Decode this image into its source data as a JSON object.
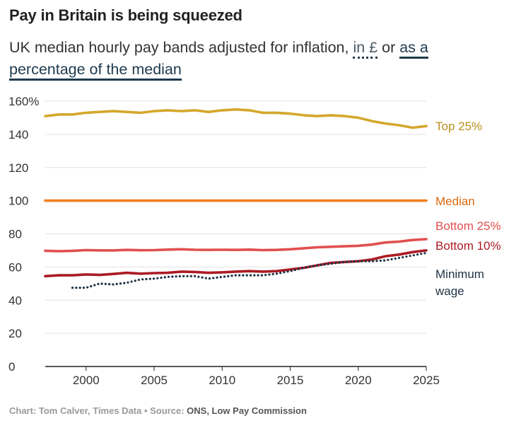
{
  "header": {
    "title": "Pay in Britain is being squeezed",
    "subtitle_main": "UK median hourly pay bands adjusted for inflation,",
    "toggle_pound": "in £",
    "subtitle_or": "or",
    "toggle_percent": "as a percentage of the median"
  },
  "footer": {
    "credit": "Chart: Tom Calver, Times Data • Source: ",
    "source": "ONS, Low Pay Commission"
  },
  "colors": {
    "top25": "#d4a72c",
    "median": "#f07f1e",
    "bottom25": "#e0504f",
    "bottom10": "#ab1c25",
    "minimum_wage": "#1e3244",
    "grid": "#e2e2e2",
    "axis": "#222222"
  },
  "chart_data": {
    "type": "line",
    "title": "Pay in Britain is being squeezed",
    "subtitle": "UK median hourly pay bands adjusted for inflation, in £ or as a percentage of the median",
    "xlabel": "",
    "ylabel": "",
    "xlim": [
      1997,
      2025
    ],
    "ylim": [
      0,
      160
    ],
    "x_ticks": [
      2000,
      2005,
      2010,
      2015,
      2020,
      2025
    ],
    "y_ticks": [
      0,
      20,
      40,
      60,
      80,
      100,
      120,
      140,
      160
    ],
    "y_tick_labels": [
      "0",
      "20",
      "40",
      "60",
      "80",
      "100",
      "120",
      "140",
      "160%"
    ],
    "grid": true,
    "legend": "direct labels at right end of lines",
    "series": [
      {
        "key": "top25",
        "name": "Top 25%",
        "style": "solid",
        "x": [
          1997,
          1998,
          1999,
          2000,
          2001,
          2002,
          2003,
          2004,
          2005,
          2006,
          2007,
          2008,
          2009,
          2010,
          2011,
          2012,
          2013,
          2014,
          2015,
          2016,
          2017,
          2018,
          2019,
          2020,
          2021,
          2022,
          2023,
          2024,
          2025
        ],
        "values": [
          151,
          152,
          152,
          153,
          153.5,
          154,
          153.5,
          153,
          154,
          154.5,
          154,
          154.5,
          153.5,
          154.5,
          155,
          154.5,
          153,
          153,
          152.5,
          151.5,
          151,
          151.5,
          151,
          150,
          148,
          146.5,
          145.5,
          144,
          145
        ]
      },
      {
        "key": "median",
        "name": "Median",
        "style": "solid",
        "x": [
          1997,
          2025
        ],
        "values": [
          100,
          100
        ]
      },
      {
        "key": "bottom25",
        "name": "Bottom 25%",
        "style": "solid",
        "x": [
          1997,
          1998,
          1999,
          2000,
          2001,
          2002,
          2003,
          2004,
          2005,
          2006,
          2007,
          2008,
          2009,
          2010,
          2011,
          2012,
          2013,
          2014,
          2015,
          2016,
          2017,
          2018,
          2019,
          2020,
          2021,
          2022,
          2023,
          2024,
          2025
        ],
        "values": [
          69.8,
          69.5,
          69.7,
          70.2,
          70,
          70,
          70.3,
          70.1,
          70.2,
          70.5,
          70.7,
          70.4,
          70.3,
          70.4,
          70.3,
          70.5,
          70.2,
          70.3,
          70.7,
          71.3,
          71.9,
          72.2,
          72.5,
          72.8,
          73.5,
          74.8,
          75.3,
          76.3,
          76.8
        ]
      },
      {
        "key": "bottom10",
        "name": "Bottom 10%",
        "style": "solid",
        "x": [
          1997,
          1998,
          1999,
          2000,
          2001,
          2002,
          2003,
          2004,
          2005,
          2006,
          2007,
          2008,
          2009,
          2010,
          2011,
          2012,
          2013,
          2014,
          2015,
          2016,
          2017,
          2018,
          2019,
          2020,
          2021,
          2022,
          2023,
          2024,
          2025
        ],
        "values": [
          54.5,
          55,
          55,
          55.5,
          55.2,
          55.8,
          56.5,
          56,
          56.3,
          56.5,
          57.2,
          57,
          56.5,
          56.8,
          57.2,
          57.5,
          57.2,
          57.5,
          58.5,
          59.5,
          61,
          62.5,
          63,
          63.5,
          64.5,
          66.5,
          67.5,
          69,
          70
        ]
      },
      {
        "key": "minimum_wage",
        "name": "Minimum wage",
        "style": "dotted",
        "x": [
          1999,
          2000,
          2001,
          2002,
          2003,
          2004,
          2005,
          2006,
          2007,
          2008,
          2009,
          2010,
          2011,
          2012,
          2013,
          2014,
          2015,
          2016,
          2017,
          2018,
          2019,
          2020,
          2021,
          2022,
          2023,
          2024,
          2025
        ],
        "values": [
          47.5,
          47.5,
          50,
          49.5,
          50.5,
          52.5,
          53,
          54,
          54.5,
          54.5,
          53,
          54,
          55,
          55,
          55,
          56,
          57.5,
          59.5,
          61,
          62,
          63,
          63.5,
          63.5,
          64,
          65.5,
          67,
          68.5
        ]
      }
    ]
  }
}
